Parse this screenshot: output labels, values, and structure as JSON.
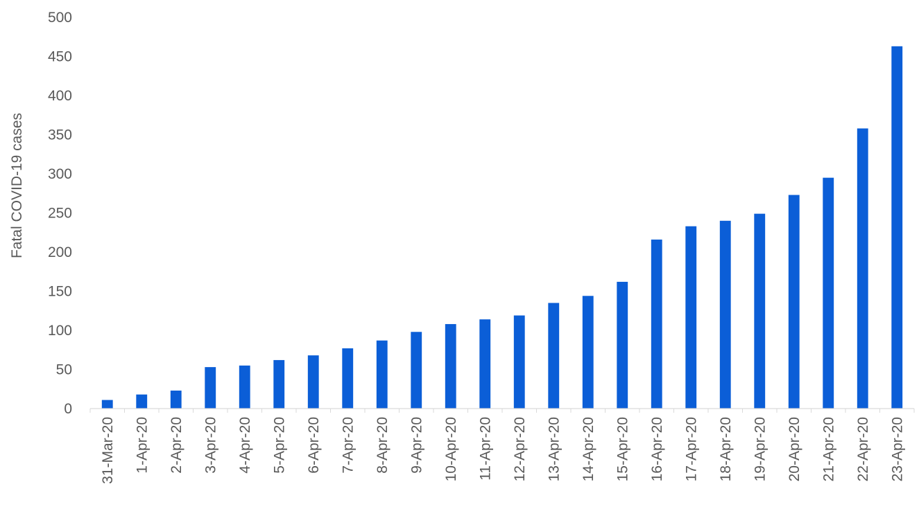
{
  "chart_data": {
    "type": "bar",
    "title": "",
    "xlabel": "",
    "ylabel": "Fatal COVID-19 cases",
    "ylim": [
      0,
      500
    ],
    "yticks": [
      0,
      50,
      100,
      150,
      200,
      250,
      300,
      350,
      400,
      450,
      500
    ],
    "grid": false,
    "legend": "none",
    "bar_color": "#0b5ed7",
    "categories": [
      "31-Mar-20",
      "1-Apr-20",
      "2-Apr-20",
      "3-Apr-20",
      "4-Apr-20",
      "5-Apr-20",
      "6-Apr-20",
      "7-Apr-20",
      "8-Apr-20",
      "9-Apr-20",
      "10-Apr-20",
      "11-Apr-20",
      "12-Apr-20",
      "13-Apr-20",
      "14-Apr-20",
      "15-Apr-20",
      "16-Apr-20",
      "17-Apr-20",
      "18-Apr-20",
      "19-Apr-20",
      "20-Apr-20",
      "21-Apr-20",
      "22-Apr-20",
      "23-Apr-20"
    ],
    "values": [
      11,
      18,
      23,
      53,
      55,
      62,
      68,
      77,
      87,
      98,
      108,
      114,
      119,
      135,
      144,
      162,
      216,
      233,
      240,
      249,
      273,
      295,
      358,
      463
    ]
  }
}
